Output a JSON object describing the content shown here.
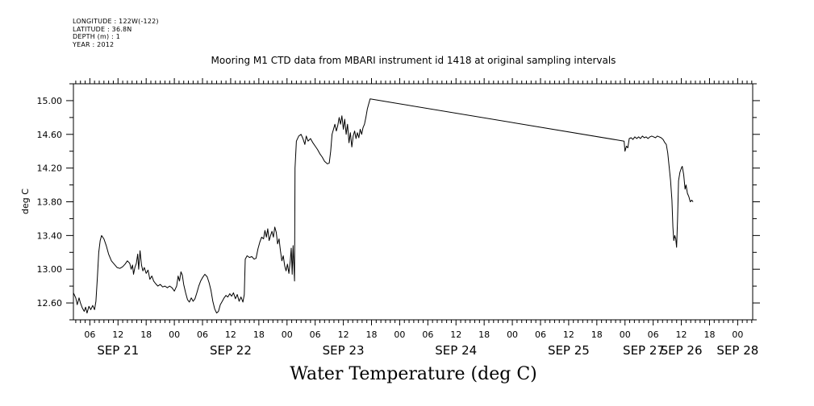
{
  "meta": {
    "longitude": "LONGITUDE : 122W(-122)",
    "latitude": "LATITUDE : 36.8N",
    "depth": "DEPTH (m) : 1",
    "year": "YEAR : 2012"
  },
  "chart_data": {
    "type": "line",
    "title": "Mooring M1 CTD data from MBARI instrument id 1418 at original sampling intervals",
    "xlabel": "Water Temperature (deg C)",
    "ylabel": "deg C",
    "x_units": "hours since 2012-09-20 00:00",
    "xlim": [
      50.5,
      195.2
    ],
    "ylim": [
      12.4,
      15.2
    ],
    "y_ticks": [
      "12.60",
      "13.00",
      "13.40",
      "13.80",
      "14.20",
      "14.60",
      "15.00"
    ],
    "hour_ticks": [
      {
        "x": 54,
        "label": "06"
      },
      {
        "x": 60,
        "label": "12"
      },
      {
        "x": 66,
        "label": "18"
      },
      {
        "x": 72,
        "label": "00"
      },
      {
        "x": 78,
        "label": "06"
      },
      {
        "x": 84,
        "label": "12"
      },
      {
        "x": 90,
        "label": "18"
      },
      {
        "x": 96,
        "label": "00"
      },
      {
        "x": 102,
        "label": "06"
      },
      {
        "x": 108,
        "label": "12"
      },
      {
        "x": 114,
        "label": "18"
      },
      {
        "x": 120,
        "label": "00"
      },
      {
        "x": 126,
        "label": "06"
      },
      {
        "x": 132,
        "label": "12"
      },
      {
        "x": 138,
        "label": "18"
      },
      {
        "x": 144,
        "label": "00"
      },
      {
        "x": 150,
        "label": "06"
      },
      {
        "x": 156,
        "label": "12"
      },
      {
        "x": 162,
        "label": "18"
      },
      {
        "x": 168,
        "label": "00"
      },
      {
        "x": 174,
        "label": "06"
      },
      {
        "x": 180,
        "label": "12"
      },
      {
        "x": 186,
        "label": "18"
      },
      {
        "x": 192,
        "label": "00"
      }
    ],
    "day_labels": [
      {
        "x": 60,
        "label": "SEP 21"
      },
      {
        "x": 84,
        "label": "SEP 22"
      },
      {
        "x": 108,
        "label": "SEP 23"
      },
      {
        "x": 132,
        "label": "SEP 24"
      },
      {
        "x": 156,
        "label": "SEP 25"
      },
      {
        "x": 180,
        "label": "SEP 26"
      },
      {
        "x": 172,
        "label": "SEP 27"
      },
      {
        "x": 192,
        "label": "SEP 28"
      }
    ],
    "series": [
      {
        "color": "#000000",
        "points": [
          [
            50.5,
            12.72
          ],
          [
            51.0,
            12.66
          ],
          [
            51.3,
            12.58
          ],
          [
            51.7,
            12.66
          ],
          [
            52.0,
            12.6
          ],
          [
            52.4,
            12.54
          ],
          [
            52.8,
            12.5
          ],
          [
            53.1,
            12.55
          ],
          [
            53.4,
            12.48
          ],
          [
            53.8,
            12.56
          ],
          [
            54.2,
            12.52
          ],
          [
            54.6,
            12.57
          ],
          [
            55.0,
            12.52
          ],
          [
            55.3,
            12.62
          ],
          [
            55.6,
            12.9
          ],
          [
            55.9,
            13.2
          ],
          [
            56.2,
            13.34
          ],
          [
            56.5,
            13.4
          ],
          [
            57.0,
            13.36
          ],
          [
            57.5,
            13.28
          ],
          [
            58.0,
            13.18
          ],
          [
            58.6,
            13.1
          ],
          [
            59.2,
            13.06
          ],
          [
            59.8,
            13.02
          ],
          [
            60.4,
            13.01
          ],
          [
            61.0,
            13.03
          ],
          [
            61.5,
            13.06
          ],
          [
            62.0,
            13.1
          ],
          [
            62.5,
            13.07
          ],
          [
            62.8,
            13.0
          ],
          [
            63.1,
            13.05
          ],
          [
            63.3,
            12.94
          ],
          [
            63.6,
            13.02
          ],
          [
            63.9,
            13.07
          ],
          [
            64.2,
            13.18
          ],
          [
            64.4,
            13.0
          ],
          [
            64.7,
            13.22
          ],
          [
            65.0,
            13.05
          ],
          [
            65.3,
            12.98
          ],
          [
            65.6,
            13.02
          ],
          [
            66.0,
            12.95
          ],
          [
            66.4,
            12.99
          ],
          [
            66.8,
            12.88
          ],
          [
            67.2,
            12.92
          ],
          [
            67.6,
            12.86
          ],
          [
            68.0,
            12.83
          ],
          [
            68.5,
            12.8
          ],
          [
            69.0,
            12.82
          ],
          [
            69.5,
            12.79
          ],
          [
            70.0,
            12.8
          ],
          [
            70.5,
            12.78
          ],
          [
            71.0,
            12.8
          ],
          [
            71.5,
            12.78
          ],
          [
            72.0,
            12.74
          ],
          [
            72.5,
            12.8
          ],
          [
            72.8,
            12.92
          ],
          [
            73.1,
            12.86
          ],
          [
            73.4,
            12.97
          ],
          [
            73.7,
            12.93
          ],
          [
            74.0,
            12.82
          ],
          [
            74.4,
            12.72
          ],
          [
            74.8,
            12.64
          ],
          [
            75.2,
            12.61
          ],
          [
            75.6,
            12.66
          ],
          [
            76.0,
            12.62
          ],
          [
            76.4,
            12.65
          ],
          [
            76.8,
            12.72
          ],
          [
            77.2,
            12.8
          ],
          [
            77.6,
            12.86
          ],
          [
            78.0,
            12.9
          ],
          [
            78.5,
            12.94
          ],
          [
            79.0,
            12.91
          ],
          [
            79.4,
            12.84
          ],
          [
            79.8,
            12.75
          ],
          [
            80.2,
            12.62
          ],
          [
            80.6,
            12.53
          ],
          [
            81.0,
            12.48
          ],
          [
            81.4,
            12.5
          ],
          [
            81.8,
            12.58
          ],
          [
            82.2,
            12.62
          ],
          [
            82.6,
            12.66
          ],
          [
            83.0,
            12.69
          ],
          [
            83.4,
            12.67
          ],
          [
            83.8,
            12.71
          ],
          [
            84.2,
            12.68
          ],
          [
            84.6,
            12.72
          ],
          [
            85.0,
            12.65
          ],
          [
            85.4,
            12.7
          ],
          [
            85.8,
            12.62
          ],
          [
            86.2,
            12.67
          ],
          [
            86.6,
            12.61
          ],
          [
            86.9,
            12.7
          ],
          [
            87.1,
            13.12
          ],
          [
            87.5,
            13.16
          ],
          [
            88.0,
            13.14
          ],
          [
            88.5,
            13.15
          ],
          [
            89.0,
            13.12
          ],
          [
            89.4,
            13.13
          ],
          [
            89.8,
            13.24
          ],
          [
            90.2,
            13.32
          ],
          [
            90.6,
            13.38
          ],
          [
            91.0,
            13.36
          ],
          [
            91.3,
            13.46
          ],
          [
            91.6,
            13.38
          ],
          [
            91.9,
            13.48
          ],
          [
            92.2,
            13.34
          ],
          [
            92.5,
            13.4
          ],
          [
            92.8,
            13.45
          ],
          [
            93.1,
            13.38
          ],
          [
            93.4,
            13.5
          ],
          [
            93.7,
            13.44
          ],
          [
            94.0,
            13.3
          ],
          [
            94.3,
            13.36
          ],
          [
            94.6,
            13.22
          ],
          [
            94.9,
            13.1
          ],
          [
            95.2,
            13.16
          ],
          [
            95.5,
            13.04
          ],
          [
            95.8,
            12.98
          ],
          [
            96.1,
            13.06
          ],
          [
            96.4,
            12.95
          ],
          [
            96.7,
            13.1
          ],
          [
            96.9,
            13.25
          ],
          [
            97.1,
            12.94
          ],
          [
            97.3,
            13.28
          ],
          [
            97.6,
            12.86
          ],
          [
            97.7,
            14.2
          ],
          [
            98.0,
            14.52
          ],
          [
            98.5,
            14.58
          ],
          [
            99.0,
            14.6
          ],
          [
            99.4,
            14.55
          ],
          [
            99.8,
            14.48
          ],
          [
            100.1,
            14.58
          ],
          [
            100.5,
            14.52
          ],
          [
            101.0,
            14.55
          ],
          [
            101.5,
            14.5
          ],
          [
            102.0,
            14.46
          ],
          [
            102.5,
            14.42
          ],
          [
            103.0,
            14.37
          ],
          [
            103.5,
            14.33
          ],
          [
            104.0,
            14.28
          ],
          [
            104.6,
            14.25
          ],
          [
            105.0,
            14.26
          ],
          [
            105.3,
            14.4
          ],
          [
            105.6,
            14.6
          ],
          [
            105.9,
            14.66
          ],
          [
            106.2,
            14.72
          ],
          [
            106.5,
            14.64
          ],
          [
            106.8,
            14.7
          ],
          [
            107.1,
            14.8
          ],
          [
            107.4,
            14.72
          ],
          [
            107.7,
            14.82
          ],
          [
            108.0,
            14.66
          ],
          [
            108.3,
            14.78
          ],
          [
            108.6,
            14.6
          ],
          [
            108.9,
            14.72
          ],
          [
            109.2,
            14.5
          ],
          [
            109.5,
            14.62
          ],
          [
            109.8,
            14.45
          ],
          [
            110.1,
            14.58
          ],
          [
            110.4,
            14.64
          ],
          [
            110.7,
            14.55
          ],
          [
            111.0,
            14.62
          ],
          [
            111.3,
            14.56
          ],
          [
            111.6,
            14.66
          ],
          [
            111.9,
            14.6
          ],
          [
            112.2,
            14.68
          ],
          [
            112.5,
            14.72
          ],
          [
            112.8,
            14.8
          ],
          [
            113.1,
            14.9
          ],
          [
            113.4,
            14.96
          ],
          [
            113.7,
            15.02
          ],
          [
            167.8,
            14.52
          ],
          [
            168.0,
            14.4
          ],
          [
            168.3,
            14.46
          ],
          [
            168.6,
            14.44
          ],
          [
            168.9,
            14.55
          ],
          [
            169.3,
            14.56
          ],
          [
            169.7,
            14.54
          ],
          [
            170.1,
            14.57
          ],
          [
            170.5,
            14.55
          ],
          [
            170.9,
            14.57
          ],
          [
            171.3,
            14.55
          ],
          [
            171.7,
            14.58
          ],
          [
            172.1,
            14.56
          ],
          [
            172.5,
            14.57
          ],
          [
            172.9,
            14.55
          ],
          [
            173.3,
            14.57
          ],
          [
            173.7,
            14.58
          ],
          [
            174.1,
            14.57
          ],
          [
            174.5,
            14.56
          ],
          [
            174.9,
            14.58
          ],
          [
            175.3,
            14.57
          ],
          [
            175.7,
            14.56
          ],
          [
            176.1,
            14.54
          ],
          [
            176.5,
            14.5
          ],
          [
            176.8,
            14.48
          ],
          [
            177.1,
            14.38
          ],
          [
            177.4,
            14.22
          ],
          [
            177.7,
            14.05
          ],
          [
            178.0,
            13.82
          ],
          [
            178.2,
            13.5
          ],
          [
            178.4,
            13.34
          ],
          [
            178.6,
            13.4
          ],
          [
            178.8,
            13.36
          ],
          [
            179.0,
            13.26
          ],
          [
            179.2,
            13.6
          ],
          [
            179.4,
            14.05
          ],
          [
            179.7,
            14.15
          ],
          [
            180.0,
            14.2
          ],
          [
            180.2,
            14.22
          ],
          [
            180.5,
            14.12
          ],
          [
            180.8,
            13.95
          ],
          [
            181.0,
            14.0
          ],
          [
            181.3,
            13.9
          ],
          [
            181.6,
            13.86
          ],
          [
            181.9,
            13.8
          ],
          [
            182.2,
            13.82
          ],
          [
            182.5,
            13.8
          ]
        ]
      }
    ]
  }
}
